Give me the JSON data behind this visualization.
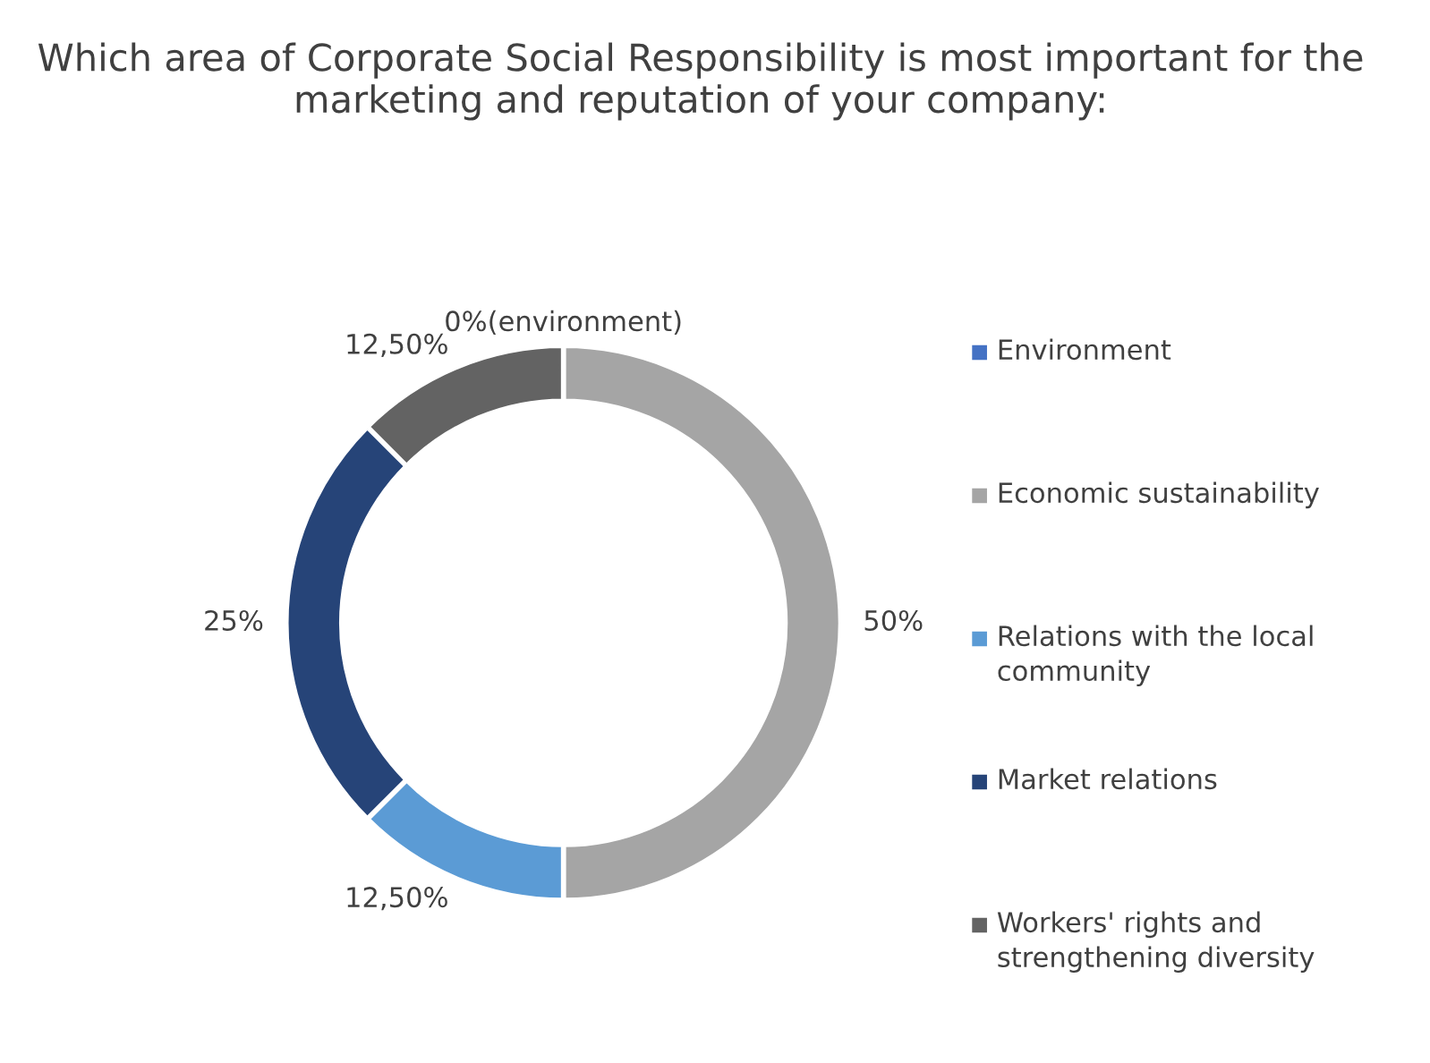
{
  "chart_data": {
    "type": "donut",
    "title": "Which area of Corporate Social Responsibility is most important for the marketing and reputation of your company:",
    "categories": [
      "Environment",
      "Economic sustainability",
      "Relations with the local community",
      "Market relations",
      "Workers' rights and strengthening diversity"
    ],
    "values": [
      0,
      50,
      12.5,
      25,
      12.5
    ],
    "colors": [
      "#4472c4",
      "#a5a5a5",
      "#5b9bd5",
      "#264478",
      "#636363"
    ],
    "value_labels": [
      "0%(environment)",
      "50%",
      "12,50%",
      "25%",
      "12,50%"
    ],
    "legend": "right"
  }
}
